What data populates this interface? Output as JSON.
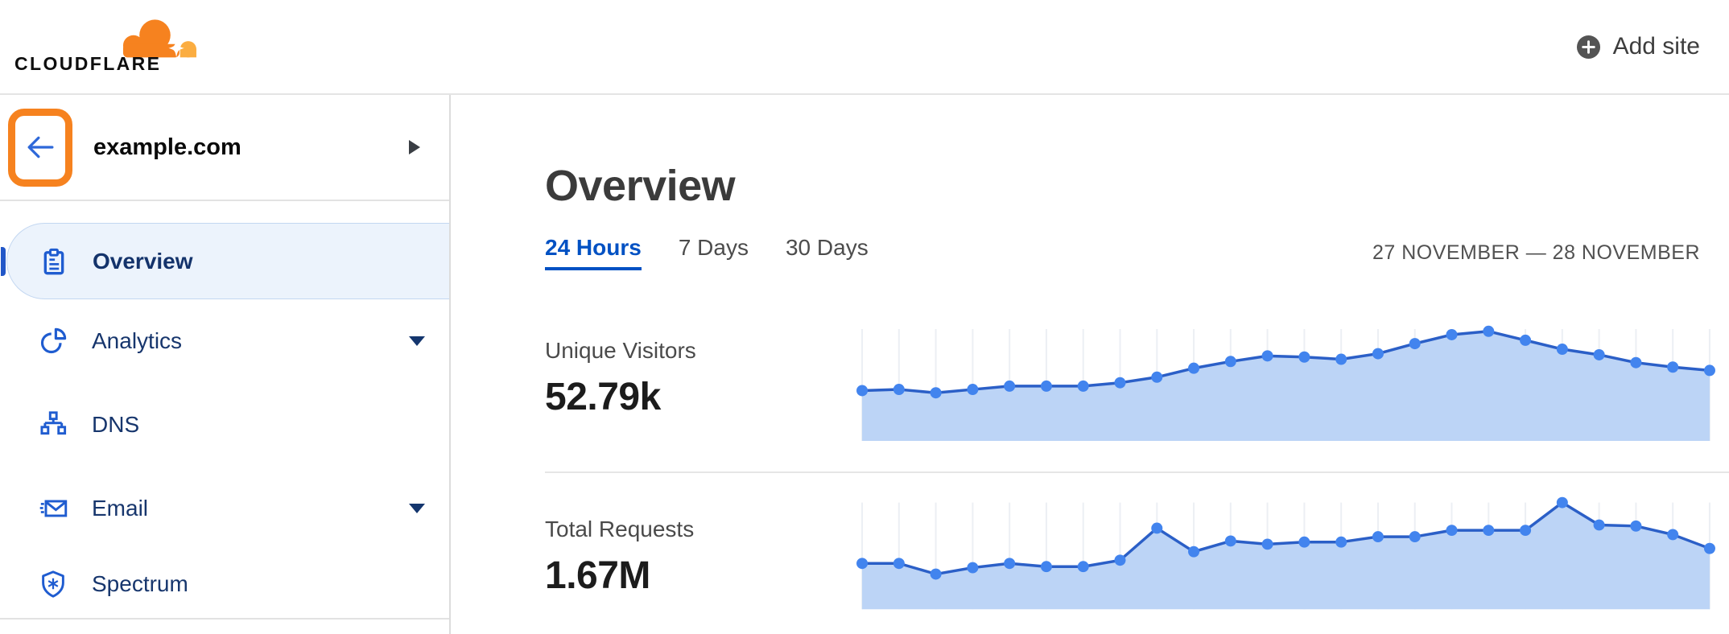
{
  "header": {
    "logo_text": "CLOUDFLARE",
    "add_site_label": "Add site"
  },
  "sidebar": {
    "site": {
      "name": "example.com"
    },
    "items": [
      {
        "label": "Overview",
        "icon": "clipboard-icon",
        "active": true,
        "expandable": false
      },
      {
        "label": "Analytics",
        "icon": "pie-chart-icon",
        "active": false,
        "expandable": true
      },
      {
        "label": "DNS",
        "icon": "sitemap-icon",
        "active": false,
        "expandable": false
      },
      {
        "label": "Email",
        "icon": "email-fast-icon",
        "active": false,
        "expandable": true
      },
      {
        "label": "Spectrum",
        "icon": "shield-asterisk-icon",
        "active": false,
        "expandable": false
      }
    ]
  },
  "main": {
    "title": "Overview",
    "tabs": [
      {
        "label": "24 Hours",
        "active": true
      },
      {
        "label": "7 Days",
        "active": false
      },
      {
        "label": "30 Days",
        "active": false
      }
    ],
    "date_range": "27 NOVEMBER — 28 NOVEMBER",
    "metrics": [
      {
        "label": "Unique Visitors",
        "value": "52.79k"
      },
      {
        "label": "Total Requests",
        "value": "1.67M"
      }
    ]
  },
  "colors": {
    "brand_orange": "#f6821f",
    "brand_orange_light": "#fbad41",
    "link_blue": "#0051c3",
    "nav_icon_blue": "#1f5cd0",
    "nav_text": "#17366d",
    "active_item_bg": "#ecf3fc",
    "accent_bar": "#2257c8",
    "highlight_box": "#f6821f",
    "chart_line": "#2b5fc7",
    "chart_dot": "#4284ee",
    "chart_fill": "#bcd4f6",
    "chart_grid": "#eceff4"
  },
  "chart_data": [
    {
      "type": "area",
      "title": "Unique Visitors",
      "total_label": "52.79k",
      "xlabel": "Hour (24 hourly points, 27–28 November; axis unlabeled)",
      "ylabel": "Unique visitors (relative scale; axis unlabeled)",
      "x": [
        1,
        2,
        3,
        4,
        5,
        6,
        7,
        8,
        9,
        10,
        11,
        12,
        13,
        14,
        15,
        16,
        17,
        18,
        19,
        20,
        21,
        22,
        23,
        24
      ],
      "values": [
        45,
        46,
        43,
        46,
        49,
        49,
        49,
        52,
        57,
        65,
        71,
        76,
        75,
        73,
        78,
        87,
        95,
        98,
        90,
        82,
        77,
        70,
        66,
        63
      ],
      "ylim": [
        0,
        100
      ],
      "grid": "vertical-only",
      "legend": false
    },
    {
      "type": "area",
      "title": "Total Requests",
      "total_label": "1.67M",
      "xlabel": "Hour (24 hourly points, 27–28 November; axis unlabeled)",
      "ylabel": "Requests (relative scale; axis unlabeled)",
      "x": [
        1,
        2,
        3,
        4,
        5,
        6,
        7,
        8,
        9,
        10,
        11,
        12,
        13,
        14,
        15,
        16,
        17,
        18,
        19,
        20,
        21,
        22,
        23,
        24
      ],
      "values": [
        43,
        43,
        33,
        39,
        43,
        40,
        40,
        46,
        76,
        54,
        64,
        61,
        63,
        63,
        68,
        68,
        74,
        74,
        74,
        100,
        79,
        78,
        70,
        57
      ],
      "ylim": [
        0,
        100
      ],
      "grid": "vertical-only",
      "legend": false
    }
  ]
}
